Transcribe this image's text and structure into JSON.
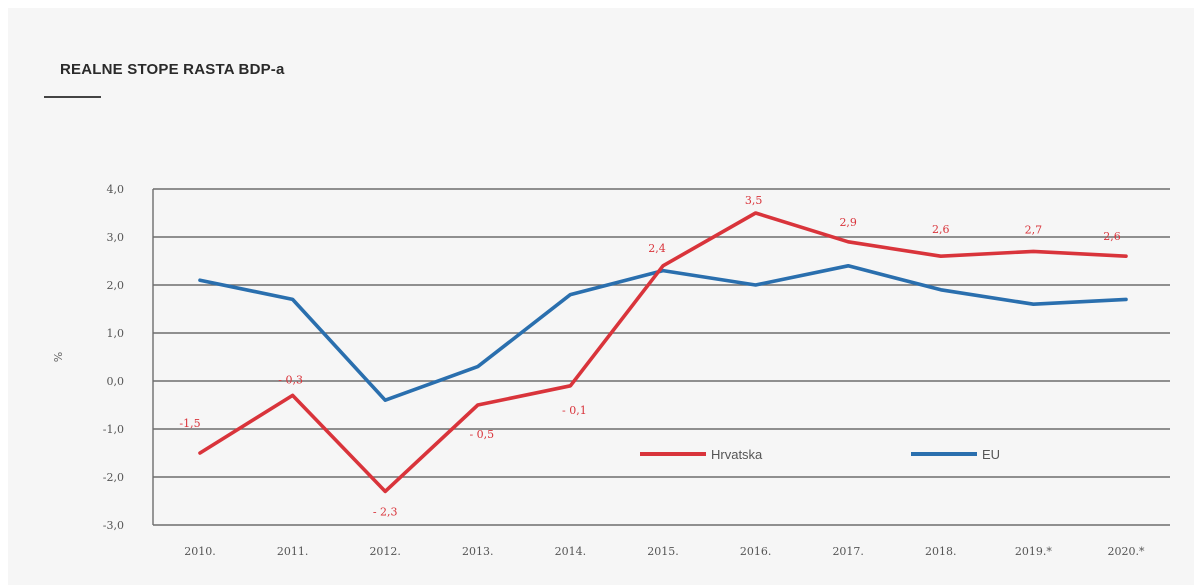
{
  "chart_data": {
    "type": "line",
    "title": "REALNE STOPE RASTA BDP-a",
    "ylabel": "%",
    "xlabel": "",
    "ylim": [
      -3,
      4
    ],
    "yticks": [
      4,
      3,
      2,
      1,
      0,
      -1,
      -2,
      -3
    ],
    "ytick_labels": [
      "4,0",
      "3,0",
      "2,0",
      "1,0",
      "0,0",
      "-1,0",
      "-2,0",
      "-3,0"
    ],
    "categories": [
      "2010.",
      "2011.",
      "2012.",
      "2013.",
      "2014.",
      "2015.",
      "2016.",
      "2017.",
      "2018.",
      "2019.*",
      "2020.*"
    ],
    "grid": true,
    "legend_position": "lower-right",
    "series": [
      {
        "name": "Hrvatska",
        "color": "#d9343b",
        "values": [
          -1.5,
          -0.3,
          -2.3,
          -0.5,
          -0.1,
          2.4,
          3.5,
          2.9,
          2.6,
          2.7,
          2.6
        ],
        "data_labels": [
          "-1,5",
          "- 0,3",
          "- 2,3",
          "- 0,5",
          "- 0,1",
          "2,4",
          "3,5",
          "2,9",
          "2,6",
          "2,7",
          "2,6"
        ]
      },
      {
        "name": "EU",
        "color": "#2a6fae",
        "values": [
          2.1,
          1.7,
          -0.4,
          0.3,
          1.8,
          2.3,
          2.0,
          2.4,
          1.9,
          1.6,
          1.7
        ]
      }
    ]
  }
}
